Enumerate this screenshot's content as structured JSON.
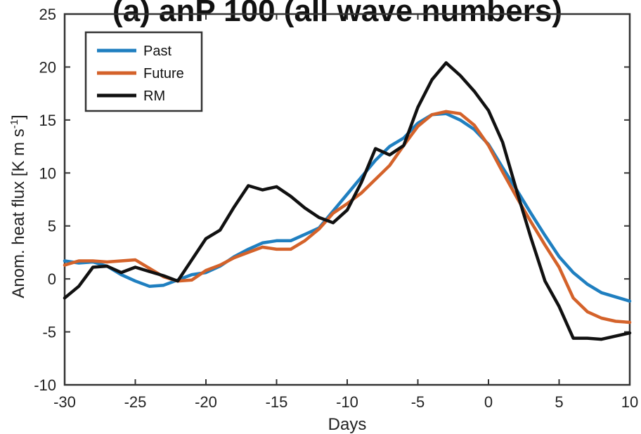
{
  "chart_data": {
    "type": "line",
    "title": "(a)  anP 100 (all wave numbers)",
    "xlabel": "Days",
    "ylabel": "Anom. heat flux [K m s",
    "ylabel_sup": "-1",
    "ylabel_end": "]",
    "xlim": [
      -30,
      10
    ],
    "ylim": [
      -10,
      25
    ],
    "xticks": [
      -30,
      -25,
      -20,
      -15,
      -10,
      -5,
      0,
      5,
      10
    ],
    "yticks": [
      -10,
      -5,
      0,
      5,
      10,
      15,
      20,
      25
    ],
    "grid": false,
    "legend_position": "top-left",
    "x": [
      -30,
      -29,
      -28,
      -27,
      -26,
      -25,
      -24,
      -23,
      -22,
      -21,
      -20,
      -19,
      -18,
      -17,
      -16,
      -15,
      -14,
      -13,
      -12,
      -11,
      -10,
      -9,
      -8,
      -7,
      -6,
      -5,
      -4,
      -3,
      -2,
      -1,
      0,
      1,
      2,
      3,
      4,
      5,
      6,
      7,
      8,
      9,
      10
    ],
    "series": [
      {
        "name": "Past",
        "color": "#1f7fc0",
        "values": [
          1.7,
          1.5,
          1.6,
          1.2,
          0.4,
          -0.2,
          -0.7,
          -0.6,
          -0.1,
          0.4,
          0.6,
          1.2,
          2.1,
          2.8,
          3.4,
          3.6,
          3.6,
          4.2,
          4.8,
          6.4,
          8.0,
          9.6,
          11.2,
          12.5,
          13.3,
          14.7,
          15.5,
          15.6,
          15.0,
          14.1,
          12.7,
          10.5,
          8.4,
          6.2,
          4.1,
          2.1,
          0.6,
          -0.5,
          -1.3,
          -1.7,
          -2.1
        ]
      },
      {
        "name": "Future",
        "color": "#d4622a",
        "values": [
          1.3,
          1.7,
          1.7,
          1.6,
          1.7,
          1.8,
          1.0,
          0.2,
          -0.2,
          -0.1,
          0.8,
          1.3,
          2.0,
          2.5,
          3.0,
          2.8,
          2.8,
          3.6,
          4.7,
          6.2,
          7.1,
          8.1,
          9.4,
          10.7,
          12.6,
          14.4,
          15.5,
          15.8,
          15.6,
          14.5,
          12.6,
          10.1,
          7.7,
          5.4,
          3.2,
          1.1,
          -1.8,
          -3.1,
          -3.7,
          -4.0,
          -4.1
        ]
      },
      {
        "name": "RM",
        "color": "#111111",
        "values": [
          -1.8,
          -0.7,
          1.1,
          1.2,
          0.6,
          1.1,
          0.7,
          0.3,
          -0.2,
          1.8,
          3.8,
          4.6,
          6.8,
          8.8,
          8.4,
          8.7,
          7.8,
          6.7,
          5.8,
          5.3,
          6.5,
          9.1,
          12.3,
          11.7,
          12.6,
          16.2,
          18.8,
          20.4,
          19.2,
          17.7,
          15.9,
          12.9,
          8.3,
          3.9,
          -0.2,
          -2.6,
          -5.6,
          -5.6,
          -5.7,
          -5.4,
          -5.1
        ]
      }
    ]
  }
}
